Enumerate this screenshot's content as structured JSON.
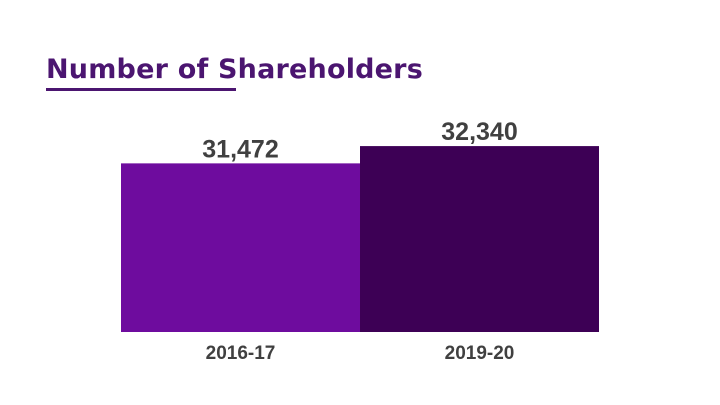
{
  "slide": {
    "title": "Number of Shareholders"
  },
  "chart_data": {
    "type": "bar",
    "title": "Number of Shareholders",
    "categories": [
      "2016-17",
      "2019-20"
    ],
    "values": [
      31472,
      32340
    ],
    "value_labels": [
      "31,472",
      "32,340"
    ],
    "xlabel": "",
    "ylabel": "",
    "ylim": [
      23000,
      33500
    ],
    "grid": false,
    "legend": "none",
    "colors": [
      "#6e0c9e",
      "#3d0055"
    ]
  },
  "colors": {
    "title": "#4b1570",
    "labels": "#404040"
  }
}
